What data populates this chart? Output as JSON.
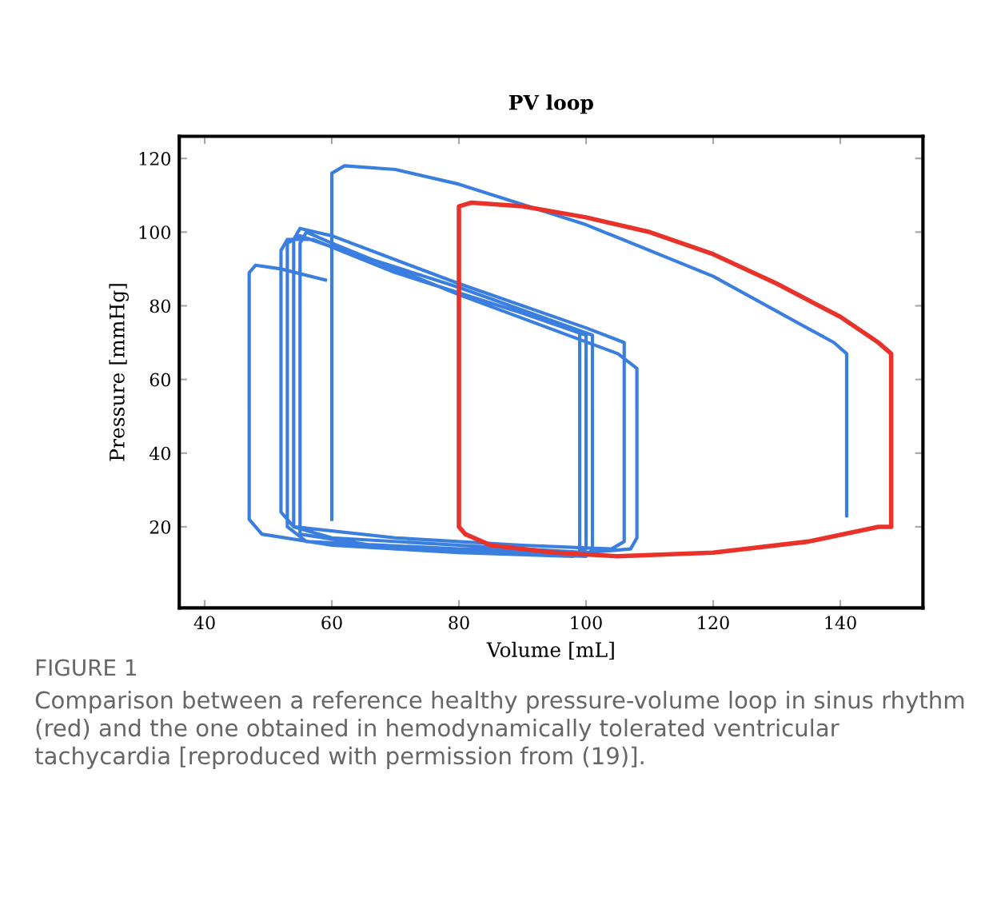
{
  "chart_data": {
    "type": "line",
    "title": "PV loop",
    "xlabel": "Volume [mL]",
    "ylabel": "Pressure [mmHg]",
    "xlim": [
      36,
      153
    ],
    "ylim": [
      -2,
      126
    ],
    "xticks": [
      40,
      60,
      80,
      100,
      120,
      140
    ],
    "yticks": [
      20,
      40,
      60,
      80,
      100,
      120
    ],
    "grid": false,
    "marker": "none",
    "line_style": "solid",
    "series": [
      {
        "color": "#e8322a",
        "x": [
          80,
          80,
          82,
          90,
          100,
          110,
          120,
          130,
          140,
          146,
          148,
          148,
          146,
          135,
          120,
          105,
          95,
          85,
          81,
          80,
          80
        ],
        "values": [
          56,
          107,
          108,
          107,
          104,
          100,
          94,
          86,
          77,
          70,
          67,
          20,
          20,
          16,
          13,
          12,
          13,
          15,
          18,
          20,
          60
        ]
      },
      {
        "color": "#3a7fe0",
        "x": [
          59,
          52,
          48,
          47,
          47,
          49,
          60,
          80,
          98,
          100,
          100,
          90,
          70,
          57,
          53,
          52,
          52,
          54,
          70,
          90,
          104,
          106,
          106,
          100,
          80,
          60,
          55,
          54,
          54,
          60,
          80,
          100,
          107,
          108,
          108,
          105,
          80,
          60,
          56,
          55,
          55,
          70,
          100,
          101,
          101,
          80,
          60,
          55,
          53,
          53,
          56,
          80,
          99,
          99
        ],
        "values": [
          87,
          90,
          91,
          89,
          22,
          18,
          15,
          13,
          12,
          14,
          72,
          78,
          89,
          98,
          98,
          95,
          24,
          20,
          17,
          15,
          14,
          16,
          70,
          74,
          86,
          99,
          101,
          98,
          20,
          17,
          15,
          13,
          14,
          17,
          63,
          67,
          83,
          97,
          100,
          97,
          18,
          14,
          12,
          14,
          72,
          85,
          96,
          99,
          97,
          20,
          16,
          14,
          13,
          72
        ]
      },
      {
        "color": "#3a7fe0",
        "x": [
          60,
          60,
          62,
          70,
          80,
          100,
          120,
          139,
          141,
          141
        ],
        "values": [
          22,
          116,
          118,
          117,
          113,
          102,
          88,
          70,
          67,
          23
        ]
      }
    ],
    "annotations": [
      "FIGURE 1",
      "Comparison between a reference healthy pressure-volume loop in sinus rhythm (red) and the one obtained in hemodynamically tolerated ventricular tachycardia [reproduced with permission from (19)]."
    ]
  }
}
